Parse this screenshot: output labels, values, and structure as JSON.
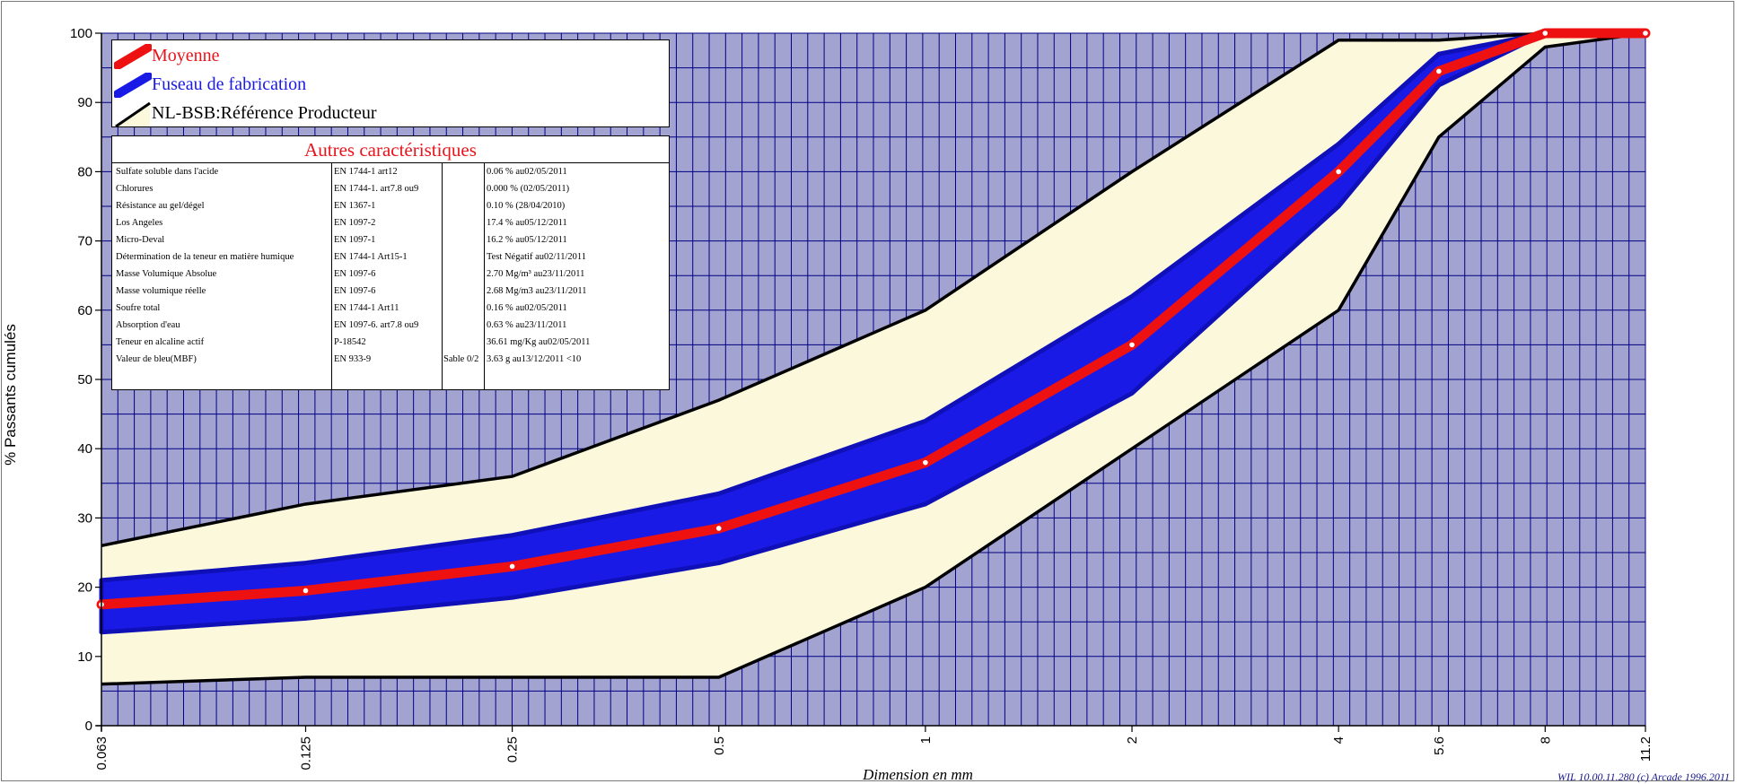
{
  "chart_data": {
    "type": "line",
    "title": "",
    "xlabel": "Dimension en mm",
    "ylabel": "% Passants cumulés",
    "x_scale": "log",
    "x_ticks": [
      "0.063",
      "0.125",
      "0.25",
      "0.5",
      "1",
      "2",
      "4",
      "5.6",
      "8",
      "11.2"
    ],
    "y_ticks": [
      "0",
      "10",
      "20",
      "30",
      "40",
      "50",
      "60",
      "70",
      "80",
      "90",
      "100"
    ],
    "ylim": [
      0,
      100
    ],
    "grid": true,
    "legend_position": "top-left",
    "x": [
      0.063,
      0.125,
      0.25,
      0.5,
      1,
      2,
      4,
      5.6,
      8,
      11.2
    ],
    "series": [
      {
        "name": "Moyenne",
        "color": "#ee1111",
        "values": [
          17.5,
          19.5,
          23,
          28.5,
          38,
          55,
          80,
          94.5,
          100,
          100
        ]
      },
      {
        "name": "Fuseau de fabrication",
        "color": "#1a1ae6",
        "upper": [
          21,
          23.5,
          27.5,
          33.5,
          44,
          62,
          84,
          97,
          100,
          100
        ],
        "lower": [
          13.5,
          15.5,
          18.5,
          23.5,
          32,
          48,
          75,
          92.5,
          100,
          100
        ]
      },
      {
        "name": "NL-BSB:Référence Producteur",
        "color": "#000000",
        "fill": "#fbf8dc",
        "upper": [
          26,
          32,
          36,
          47,
          60,
          80,
          99,
          99,
          100,
          100
        ],
        "lower": [
          6,
          7,
          7,
          7,
          20,
          40,
          60,
          85,
          98,
          100
        ]
      }
    ]
  },
  "legend": {
    "items": [
      {
        "label": "Moyenne",
        "color": "#ee1111",
        "label_color": "#e8141c"
      },
      {
        "label": "Fuseau de fabrication",
        "color": "#1a1ae6",
        "label_color": "#1a1ae6"
      },
      {
        "label": "NL-BSB:Référence Producteur",
        "color": "#000000",
        "fill": "#fbf8dc",
        "label_color": "#000000"
      }
    ]
  },
  "properties": {
    "title": "Autres caractéristiques",
    "rows": [
      [
        "Sulfate soluble dans l'acide",
        "EN 1744-1 art12",
        "",
        "0.06 % au02/05/2011"
      ],
      [
        "Chlorures",
        "EN 1744-1. art7.8 ou9",
        "",
        "0.000 % (02/05/2011)"
      ],
      [
        "Résistance au gel/dégel",
        "EN 1367-1",
        "",
        "0.10 % (28/04/2010)"
      ],
      [
        "Los Angeles",
        "EN 1097-2",
        "",
        "17.4 % au05/12/2011"
      ],
      [
        "Micro-Deval",
        "EN 1097-1",
        "",
        "16.2 % au05/12/2011"
      ],
      [
        "Détermination de la teneur en matière humique",
        "EN 1744-1 Art15-1",
        "",
        "Test Négatif au02/11/2011"
      ],
      [
        "Masse Volumique Absolue",
        "EN 1097-6",
        "",
        "2.70 Mg/m³ au23/11/2011"
      ],
      [
        "Masse volumique réelle",
        "EN 1097-6",
        "",
        "2.68 Mg/m3 au23/11/2011"
      ],
      [
        "Soufre total",
        "EN 1744-1 Art11",
        "",
        "0.16 % au02/05/2011"
      ],
      [
        "Absorption d'eau",
        "EN 1097-6. art7.8 ou9",
        "",
        "0.63 % au23/11/2011"
      ],
      [
        "Teneur en alcaline actif",
        "P-18542",
        "",
        "36.61 mg/Kg au02/05/2011"
      ],
      [
        "Valeur de bleu(MBF)",
        "EN 933-9",
        "Sable 0/2",
        "3.63 g au13/12/2011 <10"
      ]
    ]
  },
  "footer": "WIL 10.00.11.280 (c) Arcade 1996.2011",
  "colors": {
    "plot_bg": "#a3a3d2",
    "grid": "#000080",
    "band_fill": "#fbf8dc",
    "fuseau": "#1a1ae6",
    "moyenne": "#ee1111"
  }
}
